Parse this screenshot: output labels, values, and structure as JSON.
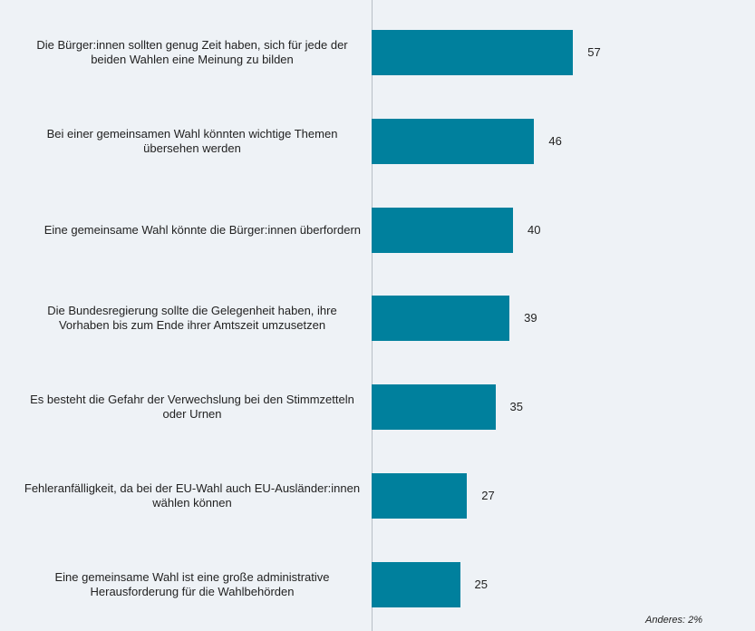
{
  "chart_data": {
    "type": "barh",
    "categories": [
      "Die Bürger:innen sollten genug Zeit haben, sich für jede der beiden Wahlen eine Meinung zu bilden",
      "Bei einer gemeinsamen Wahl könnten wichtige Themen übersehen werden",
      "Eine gemeinsame Wahl könnte die Bürger:innen überfordern",
      "Die Bundesregierung sollte die Gelegenheit haben, ihre Vorhaben bis zum Ende ihrer Amtszeit umzusetzen",
      "Es besteht die Gefahr der Verwechslung bei den Stimmzetteln oder Urnen",
      "Fehleranfälligkeit, da bei der EU-Wahl auch EU-Ausländer:innen wählen können",
      "Eine gemeinsame Wahl ist eine große administrative Herausforderung für die Wahlbehörden"
    ],
    "values": [
      57,
      46,
      40,
      39,
      35,
      27,
      25
    ],
    "color": "#00809d",
    "annotation": "Anderes: 2%"
  }
}
